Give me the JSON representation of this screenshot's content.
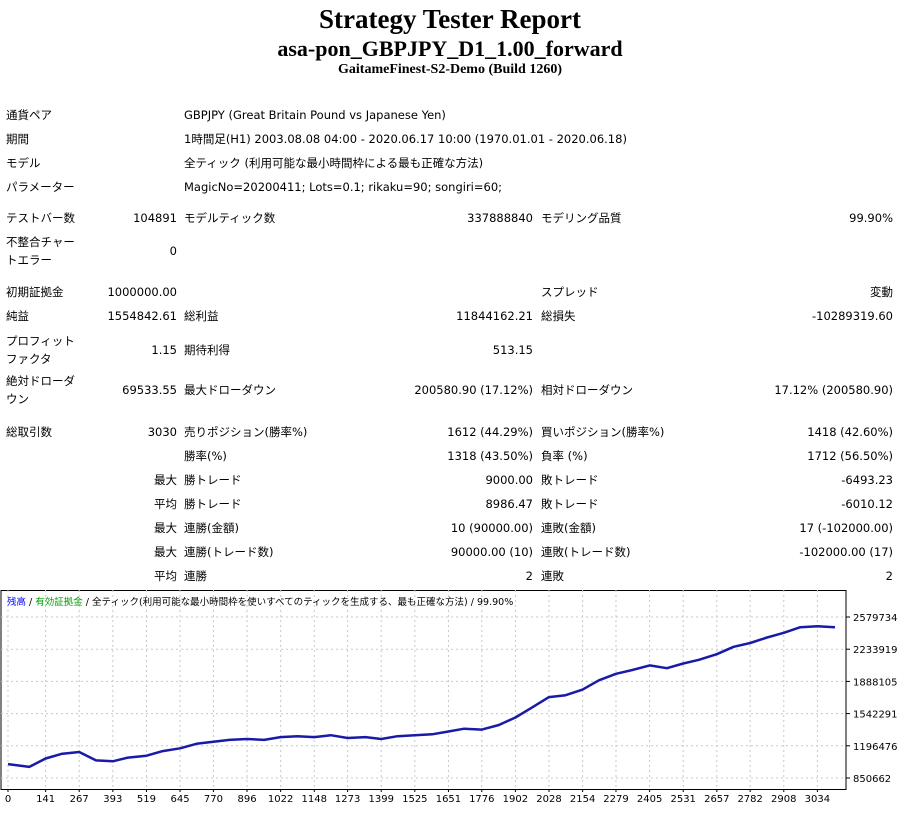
{
  "header": {
    "title": "Strategy Tester Report",
    "subtitle": "asa-pon_GBPJPY_D1_1.00_forward",
    "build": "GaitameFinest-S2-Demo (Build 1260)"
  },
  "info": {
    "symbol_label": "通貨ペア",
    "symbol_value": "GBPJPY (Great Britain Pound vs Japanese Yen)",
    "period_label": "期間",
    "period_value": "1時間足(H1) 2003.08.08 04:00 - 2020.06.17 10:00 (1970.01.01 - 2020.06.18)",
    "model_label": "モデル",
    "model_value": "全ティック (利用可能な最小時間枠による最も正確な方法)",
    "params_label": "パラメーター",
    "params_value": "MagicNo=20200411; Lots=0.1; rikaku=90; songiri=60;"
  },
  "stats": {
    "bars_label": "テストバー数",
    "bars_value": "104891",
    "ticks_label": "モデルティック数",
    "ticks_value": "337888840",
    "quality_label": "モデリング品質",
    "quality_value": "99.90%",
    "mismatch_label": "不整合チャートエラー",
    "mismatch_value": "0",
    "deposit_label": "初期証拠金",
    "deposit_value": "1000000.00",
    "spread_label": "スプレッド",
    "spread_value": "変動",
    "net_label": "純益",
    "net_value": "1554842.61",
    "gross_profit_label": "総利益",
    "gross_profit_value": "11844162.21",
    "gross_loss_label": "総損失",
    "gross_loss_value": "-10289319.60",
    "pf_label": "プロフィットファクタ",
    "pf_value": "1.15",
    "expected_label": "期待利得",
    "expected_value": "513.15",
    "abs_dd_label": "絶対ドローダウン",
    "abs_dd_value": "69533.55",
    "max_dd_label": "最大ドローダウン",
    "max_dd_value": "200580.90 (17.12%)",
    "rel_dd_label": "相対ドローダウン",
    "rel_dd_value": "17.12% (200580.90)",
    "total_label": "総取引数",
    "total_value": "3030",
    "short_label": "売りポジション(勝率%)",
    "short_value": "1612 (44.29%)",
    "long_label": "買いポジション(勝率%)",
    "long_value": "1418 (42.60%)",
    "winrate_label": "勝率(%)",
    "winrate_value": "1318 (43.50%)",
    "lossrate_label": "負率 (%)",
    "lossrate_value": "1712 (56.50%)",
    "max_word": "最大",
    "avg_word": "平均",
    "largest_win_label": "勝トレード",
    "largest_win_value": "9000.00",
    "largest_loss_label": "敗トレード",
    "largest_loss_value": "-6493.23",
    "avg_win_label": "勝トレード",
    "avg_win_value": "8986.47",
    "avg_loss_label": "敗トレード",
    "avg_loss_value": "-6010.12",
    "max_cons_wins_label": "連勝(金額)",
    "max_cons_wins_value": "10 (90000.00)",
    "max_cons_losses_label": "連敗(金額)",
    "max_cons_losses_value": "17 (-102000.00)",
    "max_cons_profit_label": "連勝(トレード数)",
    "max_cons_profit_value": "90000.00 (10)",
    "max_cons_loss_label": "連敗(トレード数)",
    "max_cons_loss_value": "-102000.00 (17)",
    "avg_cons_wins_label": "連勝",
    "avg_cons_wins_value": "2",
    "avg_cons_losses_label": "連敗",
    "avg_cons_losses_value": "2"
  },
  "chart_header": {
    "balance": "残高",
    "sep1": " / ",
    "equity": "有効証拠金",
    "sep2": " / ",
    "model": "全ティック(利用可能な最小時間枠を使いすべてのティックを生成する、最も正確な方法)",
    "sep3": " / ",
    "quality": "99.90%"
  },
  "colors": {
    "balance_line": "#1a1aa8",
    "equity_label": "#00a000",
    "balance_label": "#0000ff",
    "grid": "#c8c8c8"
  },
  "chart_data": {
    "type": "line",
    "x_ticks": [
      "0",
      "141",
      "267",
      "393",
      "519",
      "645",
      "770",
      "896",
      "1022",
      "1148",
      "1273",
      "1399",
      "1525",
      "1651",
      "1776",
      "1902",
      "2028",
      "2154",
      "2279",
      "2405",
      "2531",
      "2657",
      "2782",
      "2908",
      "3034"
    ],
    "y_ticks": [
      "2579734",
      "2233919",
      "1888105",
      "1542291",
      "1196476",
      "850662"
    ],
    "ylim": [
      850662,
      2579734
    ],
    "xlim": [
      0,
      3115
    ],
    "series": [
      {
        "name": "残高",
        "x": [
          0,
          80,
          141,
          200,
          267,
          330,
          393,
          450,
          519,
          580,
          645,
          710,
          770,
          830,
          896,
          960,
          1022,
          1085,
          1148,
          1210,
          1273,
          1340,
          1399,
          1460,
          1525,
          1590,
          1651,
          1710,
          1776,
          1840,
          1902,
          1960,
          2028,
          2090,
          2154,
          2215,
          2279,
          2340,
          2405,
          2470,
          2531,
          2590,
          2657,
          2720,
          2782,
          2845,
          2908,
          2970,
          3034,
          3100
        ],
        "y": [
          1000000,
          970000,
          1060000,
          1110000,
          1130000,
          1040000,
          1030000,
          1070000,
          1090000,
          1140000,
          1170000,
          1220000,
          1240000,
          1260000,
          1270000,
          1260000,
          1290000,
          1300000,
          1290000,
          1310000,
          1280000,
          1290000,
          1270000,
          1300000,
          1310000,
          1320000,
          1350000,
          1380000,
          1370000,
          1420000,
          1500000,
          1600000,
          1720000,
          1740000,
          1800000,
          1900000,
          1970000,
          2010000,
          2060000,
          2030000,
          2080000,
          2120000,
          2180000,
          2260000,
          2300000,
          2360000,
          2410000,
          2470000,
          2480000,
          2470000
        ]
      }
    ]
  }
}
